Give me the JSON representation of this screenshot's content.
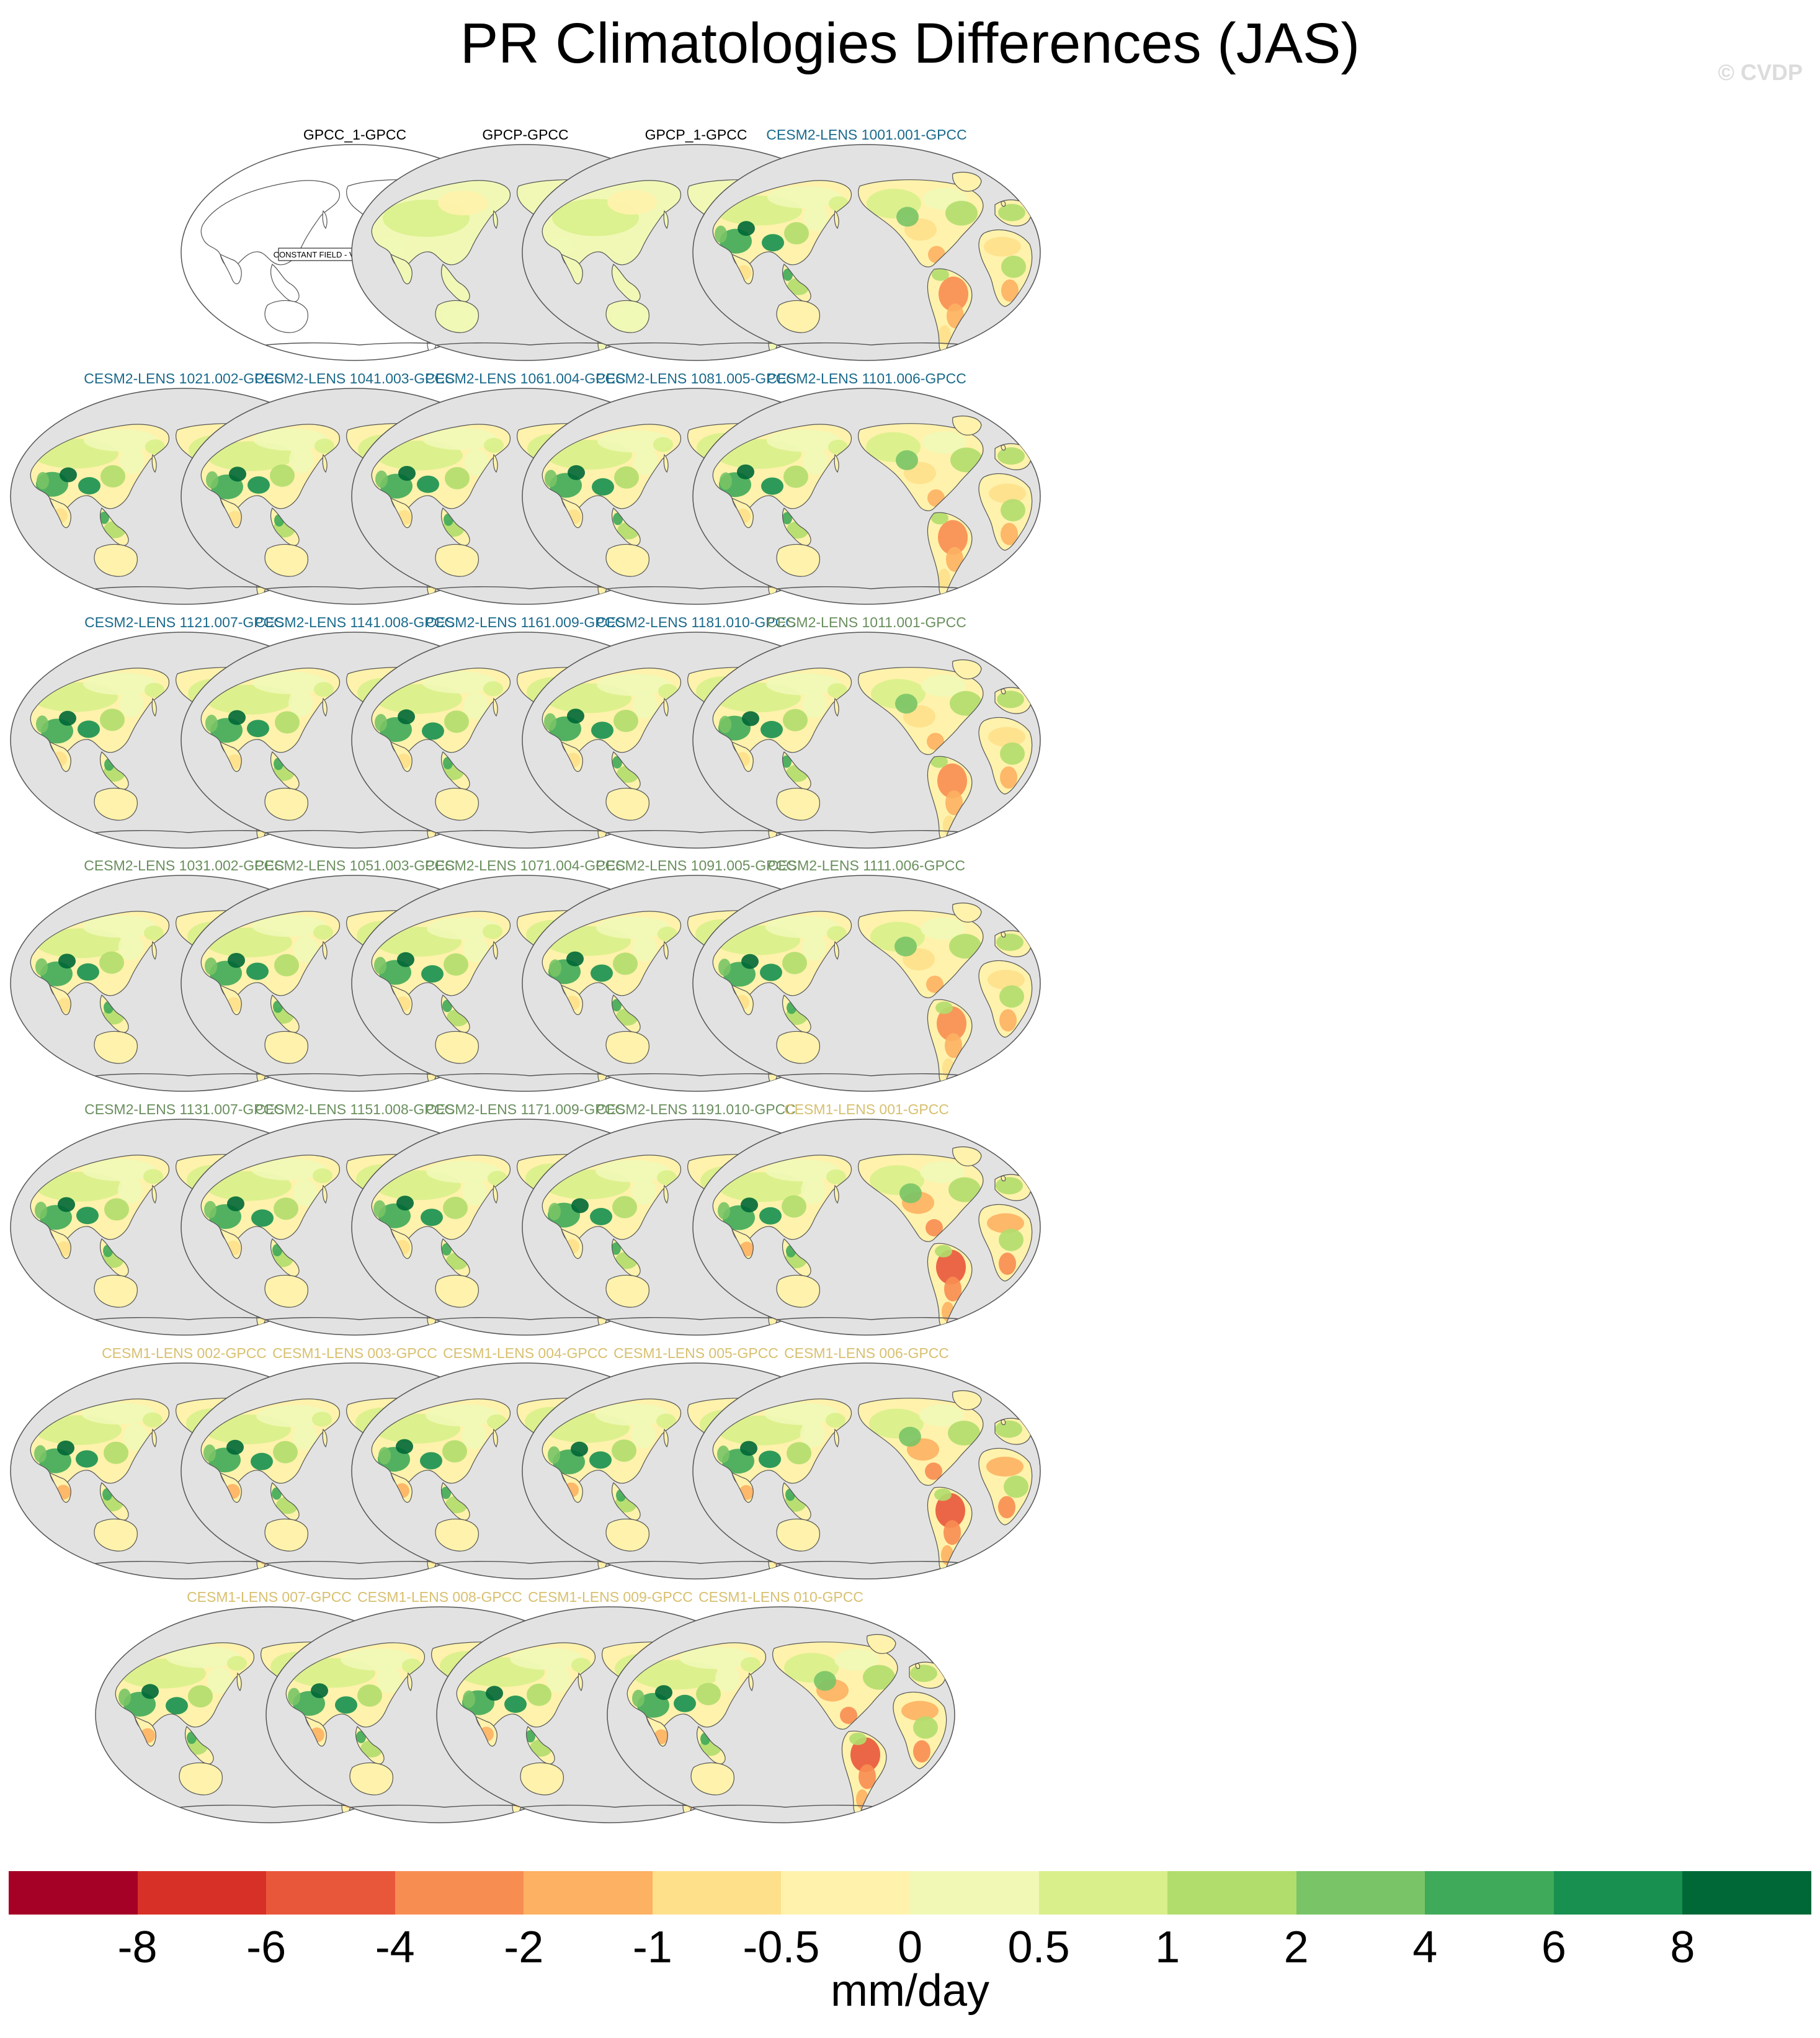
{
  "title": "PR Climatologies Differences (JAS)",
  "copyright": "© CVDP",
  "units": "mm/day",
  "constant_field_label": "CONSTANT FIELD - VALUE IS 0",
  "colors": {
    "ocean": "#e2e2e2",
    "coast": "#555555",
    "obs_title": "#000000",
    "cesm2_a_title": "#1a6a8c",
    "cesm2_b_title": "#6a8f5e",
    "cesm1_title": "#d8c070"
  },
  "colorbar": {
    "colors": [
      "#a50026",
      "#d73027",
      "#e9573b",
      "#f88d52",
      "#fdb162",
      "#fee08b",
      "#fff2ac",
      "#f1f8b6",
      "#d9ef8b",
      "#b1dd6d",
      "#79c466",
      "#3faa59",
      "#179050",
      "#006837"
    ],
    "labels": [
      "-8",
      "-6",
      "-4",
      "-2",
      "-1",
      "-0.5",
      "0",
      "0.5",
      "1",
      "2",
      "4",
      "6",
      "8"
    ]
  },
  "panels": [
    {
      "title": "GPCC_1-GPCC",
      "group": "obs",
      "style": "constant"
    },
    {
      "title": "GPCP-GPCC",
      "group": "obs",
      "style": "obs"
    },
    {
      "title": "GPCP_1-GPCC",
      "group": "obs",
      "style": "obs"
    },
    {
      "title": "CESM2-LENS 1001.001-GPCC",
      "group": "cesm2_a",
      "style": "model"
    },
    {
      "title": "CESM2-LENS 1021.002-GPCC",
      "group": "cesm2_a",
      "style": "model"
    },
    {
      "title": "CESM2-LENS 1041.003-GPCC",
      "group": "cesm2_a",
      "style": "model"
    },
    {
      "title": "CESM2-LENS 1061.004-GPCC",
      "group": "cesm2_a",
      "style": "model"
    },
    {
      "title": "CESM2-LENS 1081.005-GPCC",
      "group": "cesm2_a",
      "style": "model"
    },
    {
      "title": "CESM2-LENS 1101.006-GPCC",
      "group": "cesm2_a",
      "style": "model"
    },
    {
      "title": "CESM2-LENS 1121.007-GPCC",
      "group": "cesm2_a",
      "style": "model"
    },
    {
      "title": "CESM2-LENS 1141.008-GPCC",
      "group": "cesm2_a",
      "style": "model"
    },
    {
      "title": "CESM2-LENS 1161.009-GPCC",
      "group": "cesm2_a",
      "style": "model"
    },
    {
      "title": "CESM2-LENS 1181.010-GPCC",
      "group": "cesm2_a",
      "style": "model"
    },
    {
      "title": "CESM2-LENS 1011.001-GPCC",
      "group": "cesm2_b",
      "style": "model"
    },
    {
      "title": "CESM2-LENS 1031.002-GPCC",
      "group": "cesm2_b",
      "style": "model"
    },
    {
      "title": "CESM2-LENS 1051.003-GPCC",
      "group": "cesm2_b",
      "style": "model"
    },
    {
      "title": "CESM2-LENS 1071.004-GPCC",
      "group": "cesm2_b",
      "style": "model"
    },
    {
      "title": "CESM2-LENS 1091.005-GPCC",
      "group": "cesm2_b",
      "style": "model"
    },
    {
      "title": "CESM2-LENS 1111.006-GPCC",
      "group": "cesm2_b",
      "style": "model"
    },
    {
      "title": "CESM2-LENS 1131.007-GPCC",
      "group": "cesm2_b",
      "style": "model"
    },
    {
      "title": "CESM2-LENS 1151.008-GPCC",
      "group": "cesm2_b",
      "style": "model"
    },
    {
      "title": "CESM2-LENS 1171.009-GPCC",
      "group": "cesm2_b",
      "style": "model"
    },
    {
      "title": "CESM2-LENS 1191.010-GPCC",
      "group": "cesm2_b",
      "style": "model"
    },
    {
      "title": "CESM1-LENS 001-GPCC",
      "group": "cesm1",
      "style": "model"
    },
    {
      "title": "CESM1-LENS 002-GPCC",
      "group": "cesm1",
      "style": "model"
    },
    {
      "title": "CESM1-LENS 003-GPCC",
      "group": "cesm1",
      "style": "model"
    },
    {
      "title": "CESM1-LENS 004-GPCC",
      "group": "cesm1",
      "style": "model"
    },
    {
      "title": "CESM1-LENS 005-GPCC",
      "group": "cesm1",
      "style": "model"
    },
    {
      "title": "CESM1-LENS 006-GPCC",
      "group": "cesm1",
      "style": "model"
    },
    {
      "title": "CESM1-LENS 007-GPCC",
      "group": "cesm1",
      "style": "model"
    },
    {
      "title": "CESM1-LENS 008-GPCC",
      "group": "cesm1",
      "style": "model"
    },
    {
      "title": "CESM1-LENS 009-GPCC",
      "group": "cesm1",
      "style": "model"
    },
    {
      "title": "CESM1-LENS 010-GPCC",
      "group": "cesm1",
      "style": "model"
    }
  ]
}
